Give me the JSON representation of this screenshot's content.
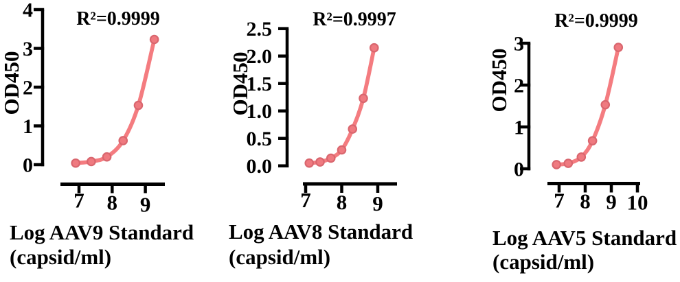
{
  "colors": {
    "curve": "#F47C80",
    "point_fill": "#EF7A80",
    "point_stroke": "#D9666E",
    "axis": "#000000",
    "text": "#000000"
  },
  "chart_data": [
    {
      "type": "scatter",
      "series_name": "AAV9 standard curve",
      "annotation": "R²=0.9999",
      "ylabel": "OD450",
      "xlabel_line1": "Log AAV9 Standard",
      "xlabel_line2": "(capsid/ml)",
      "x": [
        6.9,
        7.37,
        7.84,
        8.33,
        8.79,
        9.27
      ],
      "y": [
        0.04,
        0.08,
        0.2,
        0.62,
        1.53,
        3.23
      ],
      "xticks": [
        7,
        8,
        9
      ],
      "xtick_labels": [
        "7",
        "8",
        "9"
      ],
      "yticks": [
        0,
        1,
        2,
        3,
        4
      ],
      "ytick_labels": [
        "0",
        "1",
        "2",
        "3",
        "4"
      ],
      "ylim": [
        0,
        4
      ],
      "xlim": [
        6.44,
        9.6
      ],
      "grid": false,
      "legend": false
    },
    {
      "type": "scatter",
      "series_name": "AAV8 standard curve",
      "annotation": "R²=0.9997",
      "ylabel": "OD450",
      "xlabel_line1": "Log AAV8 Standard",
      "xlabel_line2": "(capsid/ml)",
      "x": [
        7.1,
        7.4,
        7.7,
        8.0,
        8.3,
        8.6,
        8.9
      ],
      "y": [
        0.05,
        0.07,
        0.14,
        0.29,
        0.67,
        1.23,
        2.15
      ],
      "xticks": [
        7,
        8,
        9
      ],
      "xtick_labels": [
        "7",
        "8",
        "9"
      ],
      "yticks": [
        0,
        0.5,
        1,
        1.5,
        2,
        2.5
      ],
      "ytick_labels": [
        "0.0",
        "0.5",
        "1.0",
        "1.5",
        "2.0",
        "2.5"
      ],
      "ylim": [
        0,
        2.5
      ],
      "xlim": [
        6.93,
        9.55
      ],
      "grid": false,
      "legend": false
    },
    {
      "type": "scatter",
      "series_name": "AAV5 standard curve",
      "annotation": "R²=0.9999",
      "ylabel": "OD450",
      "xlabel_line1": "Log AAV5 Standard",
      "xlabel_line2": "(capsid/ml)",
      "x": [
        6.9,
        7.35,
        7.85,
        8.28,
        8.77,
        9.27
      ],
      "y": [
        0.1,
        0.13,
        0.28,
        0.67,
        1.53,
        2.9
      ],
      "xticks": [
        7,
        8,
        9,
        10
      ],
      "xtick_labels": [
        "7",
        "8",
        "9",
        "10"
      ],
      "yticks": [
        0,
        1,
        2,
        3
      ],
      "ytick_labels": [
        "0",
        "1",
        "2",
        "3"
      ],
      "ylim": [
        0,
        3
      ],
      "xlim": [
        6.55,
        10.1
      ],
      "grid": false,
      "legend": false
    }
  ]
}
